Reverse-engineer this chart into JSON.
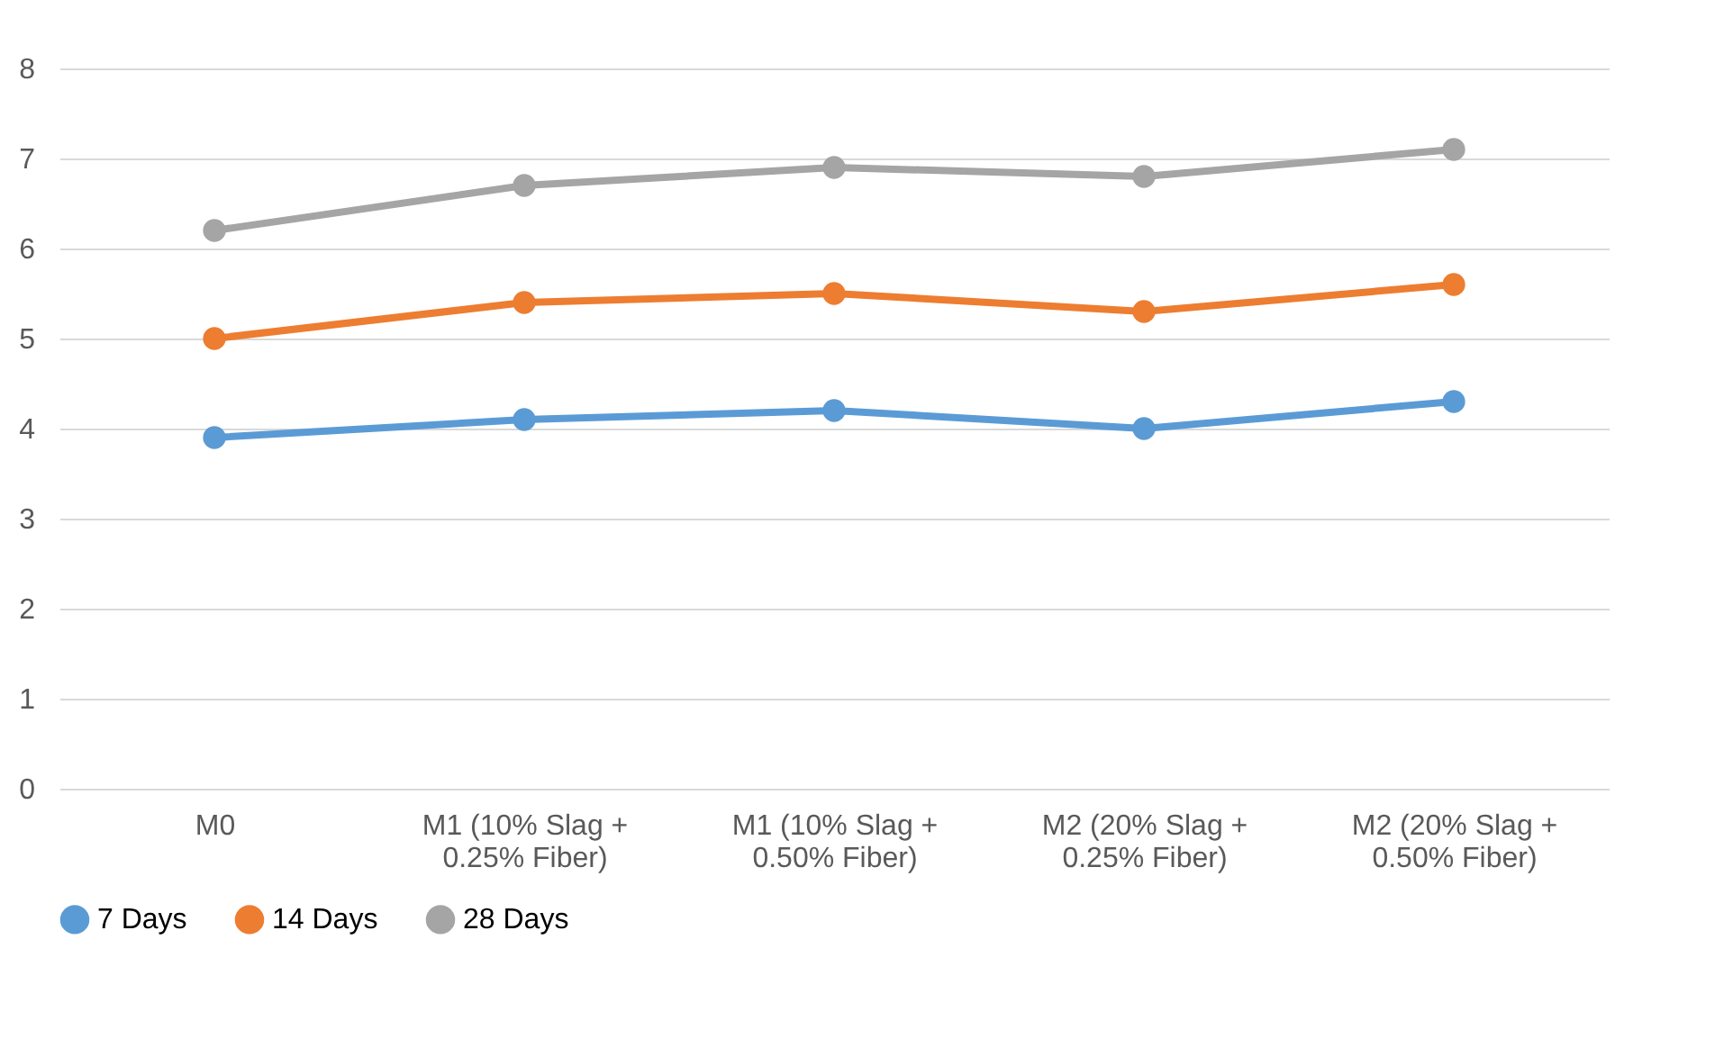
{
  "chart_data": {
    "type": "line",
    "categories": [
      "M0",
      "M1 (10% Slag + 0.25% Fiber)",
      "M1 (10% Slag + 0.50% Fiber)",
      "M2 (20% Slag + 0.25% Fiber)",
      "M2 (20% Slag + 0.50% Fiber)"
    ],
    "series": [
      {
        "name": "7 Days",
        "color": "#5b9bd5",
        "values": [
          3.9,
          4.1,
          4.2,
          4.0,
          4.3
        ]
      },
      {
        "name": "14 Days",
        "color": "#ed7d31",
        "values": [
          5.0,
          5.4,
          5.5,
          5.3,
          5.6
        ]
      },
      {
        "name": "28 Days",
        "color": "#a5a5a5",
        "values": [
          6.2,
          6.7,
          6.9,
          6.8,
          7.1
        ]
      }
    ],
    "ylim": [
      0,
      8
    ],
    "yticks": [
      0,
      1,
      2,
      3,
      4,
      5,
      6,
      7,
      8
    ],
    "grid": "y",
    "legend": "bottom",
    "marker": "circle",
    "line_style": "solid"
  }
}
